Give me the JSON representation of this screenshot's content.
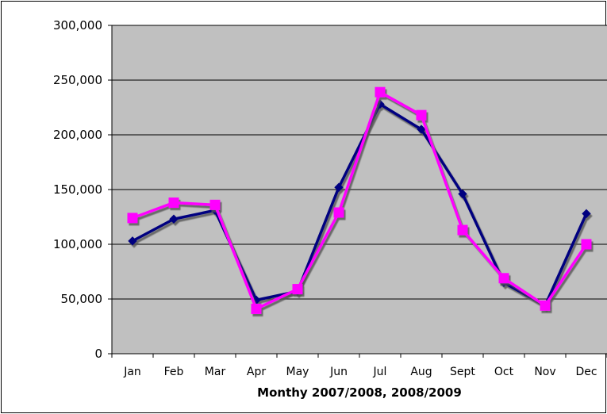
{
  "chart_data": {
    "type": "line",
    "title": "",
    "xlabel": "Monthy 2007/2008, 2008/2009",
    "ylabel": "",
    "categories": [
      "Jan",
      "Feb",
      "Mar",
      "Apr",
      "May",
      "Jun",
      "Jul",
      "Aug",
      "Sept",
      "Oct",
      "Nov",
      "Dec"
    ],
    "ylim": [
      0,
      300000
    ],
    "yticks": [
      0,
      50000,
      100000,
      150000,
      200000,
      250000,
      300000
    ],
    "ytick_labels": [
      "0",
      "50,000",
      "100,000",
      "150,000",
      "200,000",
      "250,000",
      "300,000"
    ],
    "grid": true,
    "legend": "none",
    "plot_background": "#c0c0c0",
    "series": [
      {
        "color": "#000080",
        "marker": "diamond",
        "values": [
          103000,
          123000,
          131000,
          49000,
          57000,
          152000,
          228000,
          205000,
          146000,
          65000,
          44000,
          128000
        ]
      },
      {
        "color": "#ff00ff",
        "marker": "square",
        "values": [
          124000,
          138000,
          136000,
          41000,
          59000,
          129000,
          239000,
          218000,
          113000,
          69000,
          44000,
          100000
        ]
      }
    ]
  }
}
